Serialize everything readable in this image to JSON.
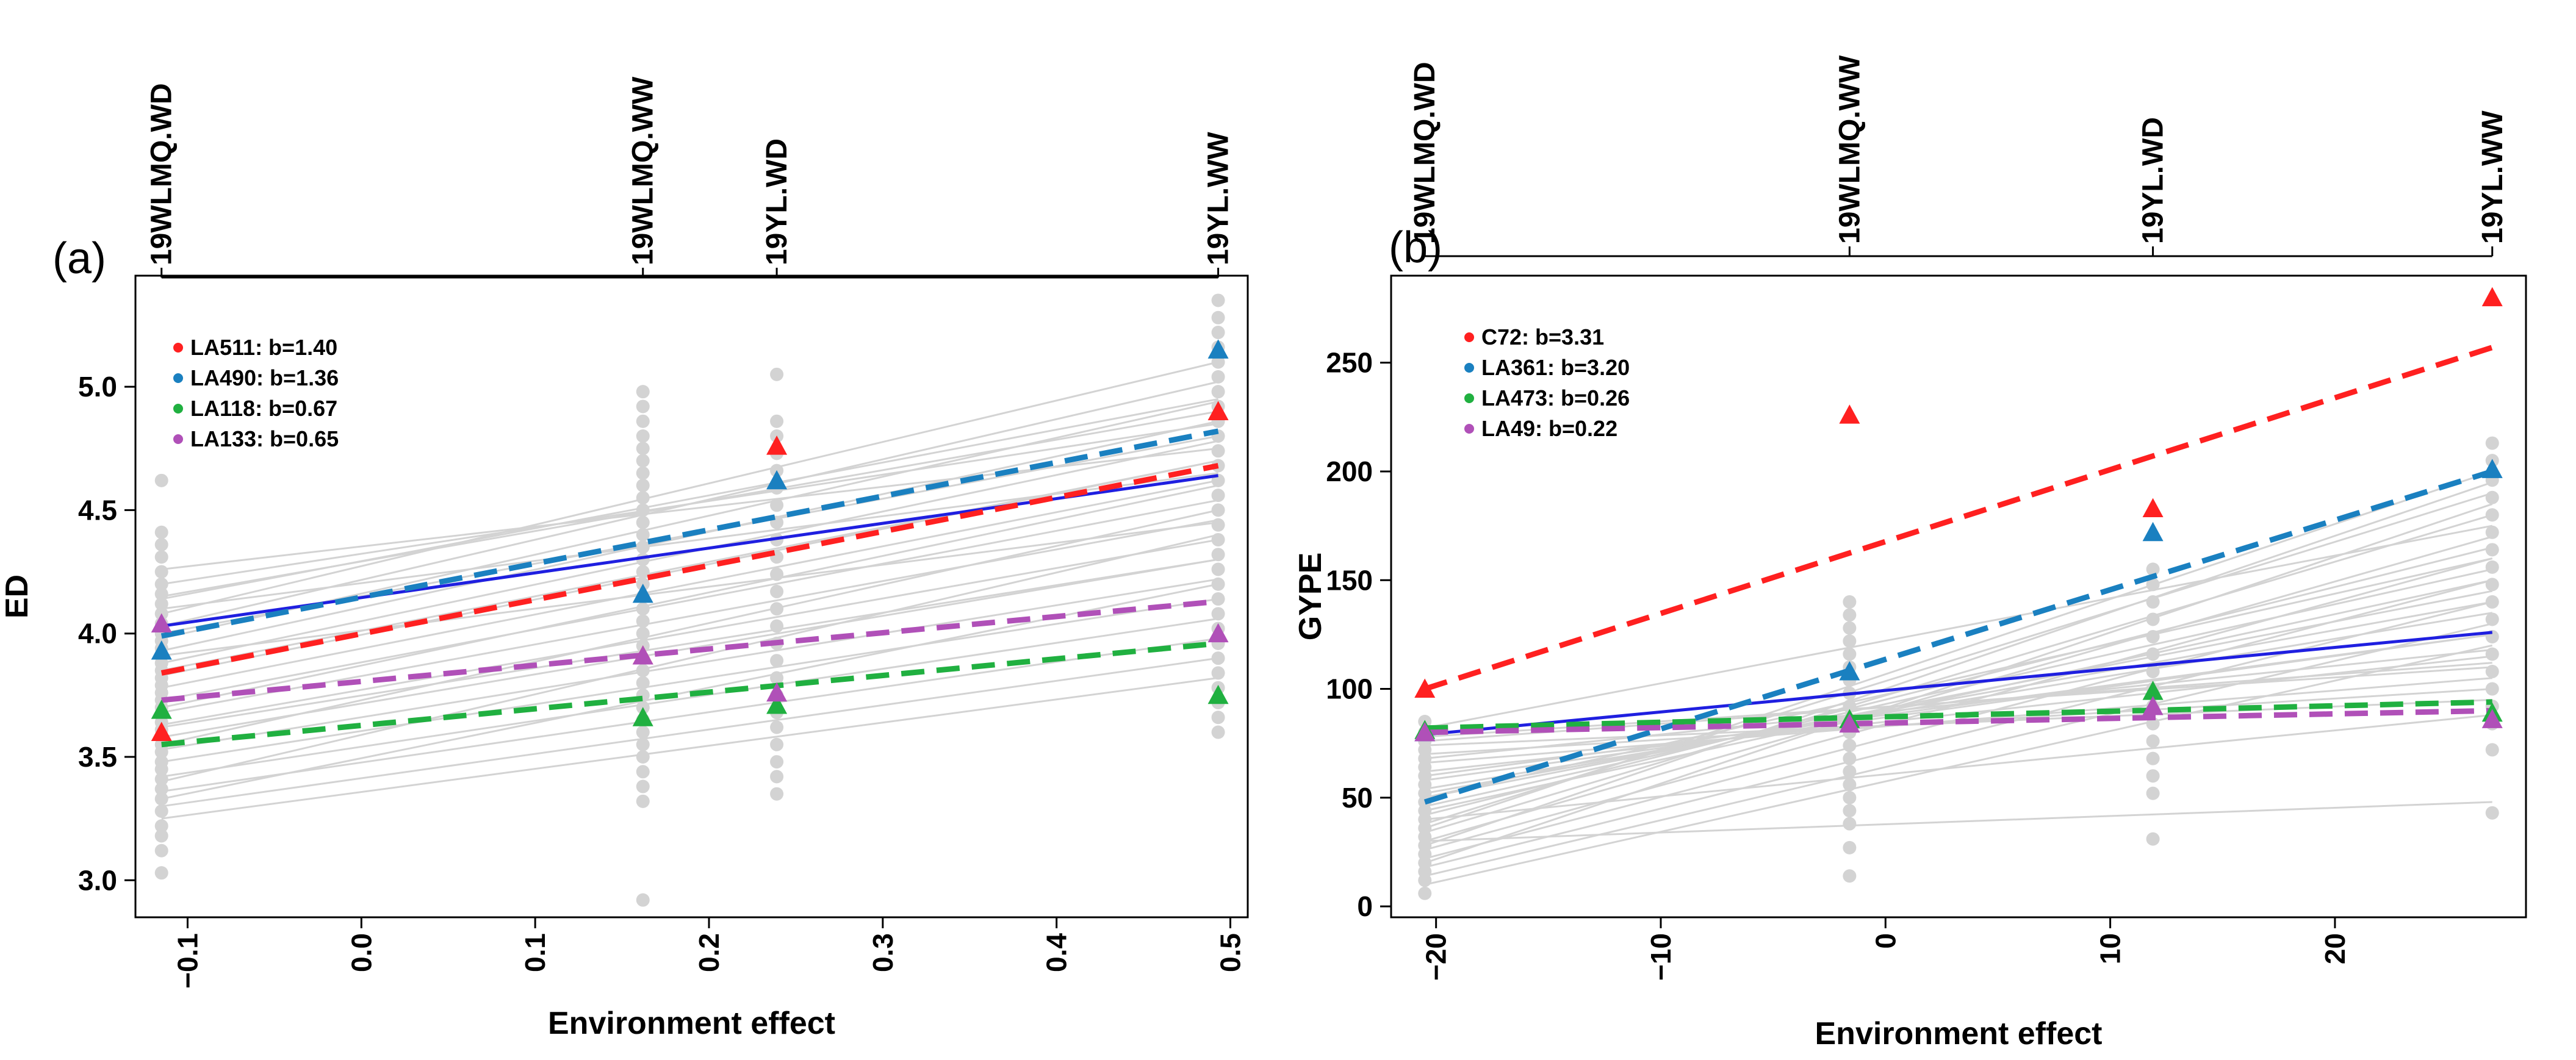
{
  "chart_data": [
    {
      "type": "scatter",
      "panel_label": "(a)",
      "title": "",
      "xlabel": "Environment effect",
      "ylabel": "ED",
      "xlim": [
        -0.13,
        0.51
      ],
      "ylim": [
        2.85,
        5.45
      ],
      "xticks": [
        -0.1,
        0.0,
        0.1,
        0.2,
        0.3,
        0.4,
        0.5
      ],
      "xtick_labels": [
        "−0.1",
        "0.0",
        "0.1",
        "0.2",
        "0.3",
        "0.4",
        "0.5"
      ],
      "yticks": [
        3.0,
        3.5,
        4.0,
        4.5,
        5.0
      ],
      "ytick_labels": [
        "3.0",
        "3.5",
        "4.0",
        "4.5",
        "5.0"
      ],
      "environments": [
        {
          "name": "19WLMQ.WD",
          "effect": -0.115
        },
        {
          "name": "19WLMQ.WW",
          "effect": 0.162
        },
        {
          "name": "19YL.WD",
          "effect": 0.239
        },
        {
          "name": "19YL.WW",
          "effect": 0.493
        }
      ],
      "background_points": {
        "color": "#d3d3d3",
        "columns": [
          {
            "effect": -0.115,
            "values": [
              3.03,
              3.12,
              3.18,
              3.22,
              3.28,
              3.33,
              3.37,
              3.41,
              3.45,
              3.48,
              3.52,
              3.55,
              3.58,
              3.61,
              3.64,
              3.67,
              3.7,
              3.73,
              3.76,
              3.79,
              3.82,
              3.85,
              3.88,
              3.91,
              3.94,
              3.97,
              4.0,
              4.04,
              4.08,
              4.12,
              4.16,
              4.2,
              4.25,
              4.31,
              4.36,
              4.41,
              4.62
            ]
          },
          {
            "effect": 0.162,
            "values": [
              2.92,
              3.32,
              3.38,
              3.44,
              3.5,
              3.55,
              3.6,
              3.65,
              3.7,
              3.75,
              3.8,
              3.85,
              3.9,
              3.95,
              4.0,
              4.05,
              4.1,
              4.15,
              4.2,
              4.25,
              4.3,
              4.35,
              4.4,
              4.45,
              4.5,
              4.55,
              4.6,
              4.65,
              4.7,
              4.75,
              4.8,
              4.86,
              4.92,
              4.98
            ]
          },
          {
            "effect": 0.239,
            "values": [
              3.35,
              3.42,
              3.48,
              3.55,
              3.62,
              3.68,
              3.75,
              3.82,
              3.89,
              3.96,
              4.03,
              4.1,
              4.17,
              4.24,
              4.31,
              4.38,
              4.45,
              4.52,
              4.59,
              4.66,
              4.73,
              4.8,
              4.86,
              5.05
            ]
          },
          {
            "effect": 0.493,
            "values": [
              3.6,
              3.66,
              3.72,
              3.78,
              3.84,
              3.9,
              3.96,
              4.02,
              4.08,
              4.14,
              4.2,
              4.26,
              4.32,
              4.38,
              4.44,
              4.5,
              4.56,
              4.62,
              4.68,
              4.74,
              4.8,
              4.86,
              4.92,
              4.98,
              5.04,
              5.1,
              5.16,
              5.22,
              5.28,
              5.35
            ]
          }
        ]
      },
      "background_lines": {
        "color": "#d3d3d3",
        "start_values": [
          3.25,
          3.3,
          3.36,
          3.42,
          3.48,
          3.53,
          3.58,
          3.63,
          3.68,
          3.73,
          3.78,
          3.83,
          3.88,
          3.93,
          3.98,
          4.03,
          4.08,
          4.14,
          4.2,
          4.26,
          3.4,
          3.55,
          3.7,
          3.85,
          4.0,
          4.15,
          3.33,
          3.62,
          3.91,
          4.1
        ],
        "end_values": [
          3.82,
          3.9,
          3.98,
          4.06,
          4.14,
          4.22,
          4.3,
          4.38,
          4.46,
          4.54,
          4.62,
          4.7,
          4.78,
          4.86,
          4.94,
          5.02,
          5.1,
          4.95,
          4.85,
          4.75,
          4.4,
          4.5,
          4.6,
          4.7,
          4.8,
          4.9,
          4.2,
          4.3,
          4.45,
          4.65
        ]
      },
      "mean_line": {
        "color": "#1f1fe0",
        "x": [
          -0.115,
          0.493
        ],
        "y": [
          4.03,
          4.64
        ]
      },
      "series": [
        {
          "name": "LA511",
          "b": "1.40",
          "legend": "LA511:  b=1.40",
          "color": "#ff2020",
          "line": {
            "x": [
              -0.115,
              0.493
            ],
            "y": [
              3.84,
              4.68
            ]
          },
          "points": {
            "x": [
              -0.115,
              0.162,
              0.239,
              0.493
            ],
            "y": [
              3.6,
              3.91,
              4.76,
              4.9
            ]
          }
        },
        {
          "name": "LA490",
          "b": "1.36",
          "legend": "LA490:  b=1.36",
          "color": "#1a80c0",
          "line": {
            "x": [
              -0.115,
              0.493
            ],
            "y": [
              3.99,
              4.82
            ]
          },
          "points": {
            "x": [
              -0.115,
              0.162,
              0.239,
              0.493
            ],
            "y": [
              3.93,
              4.16,
              4.62,
              5.15
            ]
          }
        },
        {
          "name": "LA118",
          "b": "0.67",
          "legend": "LA118:  b=0.67",
          "color": "#20b040",
          "line": {
            "x": [
              -0.115,
              0.493
            ],
            "y": [
              3.55,
              3.96
            ]
          },
          "points": {
            "x": [
              -0.115,
              0.162,
              0.239,
              0.493
            ],
            "y": [
              3.69,
              3.66,
              3.71,
              3.75
            ]
          }
        },
        {
          "name": "LA133",
          "b": "0.65",
          "legend": "LA133:  b=0.65",
          "color": "#b050b8",
          "line": {
            "x": [
              -0.115,
              0.493
            ],
            "y": [
              3.73,
              4.13
            ]
          },
          "points": {
            "x": [
              -0.115,
              0.162,
              0.239,
              0.493
            ],
            "y": [
              4.04,
              3.91,
              3.76,
              4.0
            ]
          }
        }
      ]
    },
    {
      "type": "scatter",
      "panel_label": "(b)",
      "title": "",
      "xlabel": "Environment effect",
      "ylabel": "GYPE",
      "xlim": [
        -22,
        28.5
      ],
      "ylim": [
        -5,
        290
      ],
      "xticks": [
        -20,
        -10,
        0,
        10,
        20
      ],
      "xtick_labels": [
        "−20",
        "−10",
        "0",
        "10",
        "20"
      ],
      "yticks": [
        0,
        50,
        100,
        150,
        200,
        250
      ],
      "ytick_labels": [
        "0",
        "50",
        "100",
        "150",
        "200",
        "250"
      ],
      "environments": [
        {
          "name": "19WLMQ.WD",
          "effect": -20.5
        },
        {
          "name": "19WLMQ.WW",
          "effect": -1.6
        },
        {
          "name": "19YL.WD",
          "effect": 11.9
        },
        {
          "name": "19YL.WW",
          "effect": 27.0
        }
      ],
      "background_points": {
        "color": "#d3d3d3",
        "columns": [
          {
            "effect": -20.5,
            "values": [
              6,
              12,
              16,
              20,
              24,
              28,
              32,
              36,
              40,
              44,
              48,
              52,
              56,
              60,
              64,
              68,
              72,
              76,
              80,
              85
            ]
          },
          {
            "effect": -1.6,
            "values": [
              14,
              27,
              38,
              44,
              50,
              56,
              62,
              68,
              74,
              80,
              86,
              92,
              98,
              104,
              110,
              116,
              122,
              128,
              134,
              140
            ]
          },
          {
            "effect": 11.9,
            "values": [
              31,
              52,
              60,
              68,
              76,
              84,
              92,
              100,
              108,
              116,
              124,
              132,
              140,
              148,
              155
            ]
          },
          {
            "effect": 27.0,
            "values": [
              43,
              72,
              84,
              92,
              100,
              108,
              116,
              124,
              132,
              140,
              148,
              156,
              164,
              172,
              180,
              188,
              196,
              205,
              213
            ]
          }
        ]
      },
      "background_lines": {
        "color": "#d3d3d3",
        "start_values": [
          10,
          14,
          18,
          22,
          26,
          30,
          34,
          38,
          42,
          46,
          50,
          54,
          58,
          62,
          66,
          70,
          74,
          78,
          82,
          20,
          28,
          36,
          44,
          52,
          60,
          68,
          76,
          30,
          40,
          50
        ],
        "end_values": [
          120,
          130,
          140,
          150,
          160,
          170,
          180,
          190,
          165,
          155,
          145,
          135,
          125,
          115,
          105,
          100,
          95,
          110,
          175,
          185,
          195,
          200,
          150,
          140,
          125,
          118,
          112,
          48,
          88,
          160
        ]
      },
      "mean_line": {
        "color": "#1f1fe0",
        "x": [
          -20.5,
          27.0
        ],
        "y": [
          79,
          126
        ]
      },
      "series": [
        {
          "name": "C72",
          "b": "3.31",
          "legend": "C72:  b=3.31",
          "color": "#ff2020",
          "line": {
            "x": [
              -20.5,
              27.0
            ],
            "y": [
              100,
              257
            ]
          },
          "points": {
            "x": [
              -20.5,
              -1.6,
              11.9,
              27.0
            ],
            "y": [
              100,
              226,
              183,
              280
            ]
          }
        },
        {
          "name": "LA361",
          "b": "3.20",
          "legend": "LA361:  b=3.20",
          "color": "#1a80c0",
          "line": {
            "x": [
              -20.5,
              27.0
            ],
            "y": [
              48,
              200
            ]
          },
          "points": {
            "x": [
              -20.5,
              -1.6,
              11.9,
              27.0
            ],
            "y": [
              80,
              108,
              172,
              201
            ]
          }
        },
        {
          "name": "LA473",
          "b": "0.26",
          "legend": "LA473:  b=0.26",
          "color": "#20b040",
          "line": {
            "x": [
              -20.5,
              27.0
            ],
            "y": [
              82,
              94
            ]
          },
          "points": {
            "x": [
              -20.5,
              -1.6,
              11.9,
              27.0
            ],
            "y": [
              81,
              86,
              99,
              89
            ]
          }
        },
        {
          "name": "LA49",
          "b": "0.22",
          "legend": "LA49:  b=0.22",
          "color": "#b050b8",
          "line": {
            "x": [
              -20.5,
              27.0
            ],
            "y": [
              80,
              90
            ]
          },
          "points": {
            "x": [
              -20.5,
              -1.6,
              11.9,
              27.0
            ],
            "y": [
              80,
              84,
              92,
              86
            ]
          }
        }
      ]
    }
  ]
}
